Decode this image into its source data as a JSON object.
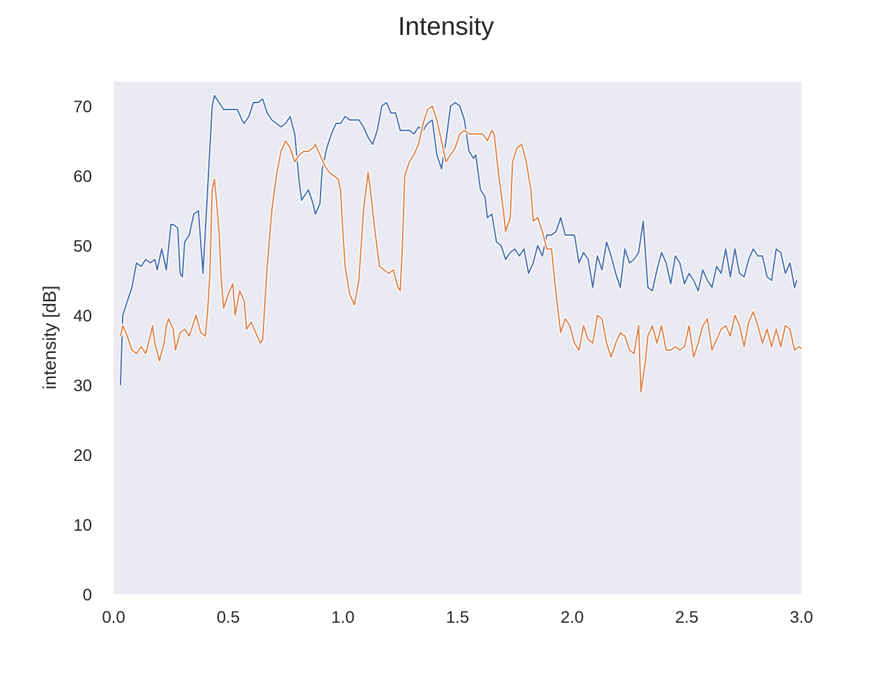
{
  "chart_data": {
    "type": "line",
    "title": "Intensity",
    "xlabel": "",
    "ylabel": "intensity [dB]",
    "xlim": [
      0.0,
      3.0
    ],
    "ylim": [
      0,
      73.5
    ],
    "x_ticks": [
      "0.0",
      "0.5",
      "1.0",
      "1.5",
      "2.0",
      "2.5",
      "3.0"
    ],
    "y_ticks": [
      "0",
      "10",
      "20",
      "30",
      "40",
      "50",
      "60",
      "70"
    ],
    "grid": false,
    "background": "#eaeaf2",
    "series": [
      {
        "color": "#4c72b0",
        "points": [
          [
            0.03,
            30
          ],
          [
            0.04,
            40
          ],
          [
            0.06,
            42
          ],
          [
            0.08,
            44
          ],
          [
            0.1,
            47.5
          ],
          [
            0.12,
            47
          ],
          [
            0.14,
            48
          ],
          [
            0.16,
            47.5
          ],
          [
            0.18,
            48
          ],
          [
            0.19,
            46.5
          ],
          [
            0.21,
            49.5
          ],
          [
            0.23,
            46.5
          ],
          [
            0.25,
            53
          ],
          [
            0.26,
            53
          ],
          [
            0.28,
            52.5
          ],
          [
            0.29,
            46
          ],
          [
            0.3,
            45.5
          ],
          [
            0.31,
            50.5
          ],
          [
            0.33,
            51.5
          ],
          [
            0.35,
            54.5
          ],
          [
            0.37,
            55
          ],
          [
            0.39,
            46
          ],
          [
            0.41,
            58
          ],
          [
            0.43,
            70
          ],
          [
            0.44,
            71.5
          ],
          [
            0.46,
            70.5
          ],
          [
            0.48,
            69.5
          ],
          [
            0.5,
            69.5
          ],
          [
            0.52,
            69.5
          ],
          [
            0.54,
            69.5
          ],
          [
            0.56,
            68
          ],
          [
            0.57,
            67.5
          ],
          [
            0.59,
            68.5
          ],
          [
            0.61,
            70.5
          ],
          [
            0.63,
            70.5
          ],
          [
            0.65,
            71
          ],
          [
            0.67,
            69
          ],
          [
            0.69,
            68
          ],
          [
            0.71,
            67.5
          ],
          [
            0.73,
            67
          ],
          [
            0.75,
            67.5
          ],
          [
            0.77,
            68.5
          ],
          [
            0.79,
            66
          ],
          [
            0.81,
            59
          ],
          [
            0.82,
            56.5
          ],
          [
            0.84,
            57.5
          ],
          [
            0.85,
            58
          ],
          [
            0.87,
            56
          ],
          [
            0.88,
            54.5
          ],
          [
            0.9,
            56
          ],
          [
            0.91,
            61
          ],
          [
            0.93,
            64
          ],
          [
            0.95,
            66
          ],
          [
            0.97,
            67.5
          ],
          [
            0.99,
            67.5
          ],
          [
            1.01,
            68.5
          ],
          [
            1.03,
            68
          ],
          [
            1.05,
            68
          ],
          [
            1.07,
            68
          ],
          [
            1.09,
            67
          ],
          [
            1.11,
            65.5
          ],
          [
            1.13,
            64.5
          ],
          [
            1.15,
            66.5
          ],
          [
            1.17,
            70
          ],
          [
            1.19,
            70.5
          ],
          [
            1.21,
            69
          ],
          [
            1.23,
            69
          ],
          [
            1.25,
            66.5
          ],
          [
            1.27,
            66.5
          ],
          [
            1.29,
            66.5
          ],
          [
            1.31,
            66
          ],
          [
            1.33,
            67
          ],
          [
            1.35,
            66.5
          ],
          [
            1.37,
            67.5
          ],
          [
            1.39,
            68
          ],
          [
            1.41,
            63
          ],
          [
            1.43,
            61
          ],
          [
            1.45,
            65
          ],
          [
            1.47,
            70
          ],
          [
            1.49,
            70.5
          ],
          [
            1.51,
            70
          ],
          [
            1.53,
            68
          ],
          [
            1.55,
            63.5
          ],
          [
            1.57,
            62.5
          ],
          [
            1.58,
            63
          ],
          [
            1.6,
            58
          ],
          [
            1.62,
            57
          ],
          [
            1.63,
            54
          ],
          [
            1.65,
            54.5
          ],
          [
            1.67,
            50.5
          ],
          [
            1.69,
            50
          ],
          [
            1.71,
            48
          ],
          [
            1.73,
            49
          ],
          [
            1.75,
            49.5
          ],
          [
            1.77,
            48.5
          ],
          [
            1.79,
            49.5
          ],
          [
            1.81,
            46
          ],
          [
            1.83,
            47.5
          ],
          [
            1.85,
            50
          ],
          [
            1.87,
            48.5
          ],
          [
            1.89,
            51.5
          ],
          [
            1.91,
            51.5
          ],
          [
            1.93,
            52
          ],
          [
            1.95,
            54
          ],
          [
            1.97,
            51.5
          ],
          [
            1.99,
            51.5
          ],
          [
            2.01,
            51.5
          ],
          [
            2.03,
            47.5
          ],
          [
            2.05,
            49
          ],
          [
            2.07,
            48
          ],
          [
            2.09,
            44
          ],
          [
            2.11,
            48.5
          ],
          [
            2.13,
            46.5
          ],
          [
            2.15,
            50.5
          ],
          [
            2.17,
            48.5
          ],
          [
            2.19,
            46
          ],
          [
            2.21,
            44
          ],
          [
            2.23,
            49.5
          ],
          [
            2.25,
            47.5
          ],
          [
            2.27,
            48
          ],
          [
            2.29,
            49
          ],
          [
            2.31,
            53.5
          ],
          [
            2.33,
            44
          ],
          [
            2.35,
            43.5
          ],
          [
            2.37,
            46.5
          ],
          [
            2.39,
            49
          ],
          [
            2.41,
            47.5
          ],
          [
            2.43,
            44.5
          ],
          [
            2.45,
            48.5
          ],
          [
            2.47,
            47.5
          ],
          [
            2.49,
            44.5
          ],
          [
            2.51,
            46
          ],
          [
            2.53,
            45
          ],
          [
            2.55,
            43.5
          ],
          [
            2.57,
            46.5
          ],
          [
            2.59,
            45
          ],
          [
            2.61,
            44
          ],
          [
            2.63,
            47
          ],
          [
            2.65,
            46
          ],
          [
            2.67,
            49.5
          ],
          [
            2.69,
            45.5
          ],
          [
            2.71,
            49.5
          ],
          [
            2.73,
            46
          ],
          [
            2.75,
            45.5
          ],
          [
            2.77,
            48
          ],
          [
            2.79,
            49.5
          ],
          [
            2.81,
            48.5
          ],
          [
            2.83,
            48.5
          ],
          [
            2.85,
            45.5
          ],
          [
            2.87,
            45
          ],
          [
            2.89,
            49.5
          ],
          [
            2.91,
            49
          ],
          [
            2.93,
            46
          ],
          [
            2.95,
            47.5
          ],
          [
            2.97,
            44
          ],
          [
            2.98,
            45
          ]
        ]
      },
      {
        "color": "#dd8452",
        "points": [
          [
            0.03,
            37
          ],
          [
            0.04,
            38.5
          ],
          [
            0.06,
            37
          ],
          [
            0.08,
            35
          ],
          [
            0.1,
            34.5
          ],
          [
            0.12,
            35.5
          ],
          [
            0.14,
            34.5
          ],
          [
            0.16,
            37
          ],
          [
            0.17,
            38.5
          ],
          [
            0.18,
            36
          ],
          [
            0.2,
            33.5
          ],
          [
            0.22,
            36
          ],
          [
            0.23,
            38.5
          ],
          [
            0.24,
            39.5
          ],
          [
            0.26,
            38
          ],
          [
            0.27,
            35
          ],
          [
            0.29,
            37.5
          ],
          [
            0.31,
            38
          ],
          [
            0.33,
            37
          ],
          [
            0.35,
            39
          ],
          [
            0.36,
            40
          ],
          [
            0.38,
            37.5
          ],
          [
            0.4,
            37
          ],
          [
            0.41,
            40.5
          ],
          [
            0.42,
            46
          ],
          [
            0.43,
            58
          ],
          [
            0.44,
            59.5
          ],
          [
            0.45,
            56
          ],
          [
            0.46,
            52
          ],
          [
            0.47,
            45
          ],
          [
            0.48,
            41
          ],
          [
            0.5,
            43
          ],
          [
            0.52,
            44.5
          ],
          [
            0.53,
            40
          ],
          [
            0.55,
            43.5
          ],
          [
            0.57,
            42
          ],
          [
            0.58,
            38
          ],
          [
            0.6,
            39
          ],
          [
            0.62,
            37.5
          ],
          [
            0.64,
            36
          ],
          [
            0.65,
            36.5
          ],
          [
            0.67,
            47
          ],
          [
            0.69,
            55
          ],
          [
            0.71,
            60
          ],
          [
            0.73,
            63.5
          ],
          [
            0.75,
            65
          ],
          [
            0.77,
            64
          ],
          [
            0.79,
            62
          ],
          [
            0.81,
            63
          ],
          [
            0.83,
            63.5
          ],
          [
            0.85,
            63.5
          ],
          [
            0.87,
            64
          ],
          [
            0.88,
            64.5
          ],
          [
            0.9,
            63
          ],
          [
            0.92,
            61.5
          ],
          [
            0.94,
            60.5
          ],
          [
            0.96,
            60
          ],
          [
            0.98,
            59.5
          ],
          [
            0.99,
            58
          ],
          [
            1.0,
            52
          ],
          [
            1.01,
            47
          ],
          [
            1.03,
            43
          ],
          [
            1.05,
            41.5
          ],
          [
            1.07,
            45
          ],
          [
            1.09,
            55
          ],
          [
            1.11,
            60.5
          ],
          [
            1.12,
            58
          ],
          [
            1.14,
            52
          ],
          [
            1.16,
            47
          ],
          [
            1.18,
            46.5
          ],
          [
            1.2,
            46
          ],
          [
            1.22,
            46.5
          ],
          [
            1.24,
            44
          ],
          [
            1.25,
            43.5
          ],
          [
            1.26,
            50
          ],
          [
            1.27,
            60
          ],
          [
            1.29,
            62
          ],
          [
            1.31,
            63
          ],
          [
            1.33,
            64.5
          ],
          [
            1.35,
            67.5
          ],
          [
            1.37,
            69.5
          ],
          [
            1.39,
            70
          ],
          [
            1.41,
            68
          ],
          [
            1.43,
            65
          ],
          [
            1.45,
            62
          ],
          [
            1.47,
            63
          ],
          [
            1.49,
            64
          ],
          [
            1.51,
            66
          ],
          [
            1.53,
            66.5
          ],
          [
            1.55,
            66
          ],
          [
            1.57,
            66
          ],
          [
            1.59,
            66
          ],
          [
            1.61,
            66
          ],
          [
            1.63,
            65
          ],
          [
            1.65,
            66.5
          ],
          [
            1.66,
            66
          ],
          [
            1.68,
            60
          ],
          [
            1.7,
            55
          ],
          [
            1.71,
            52
          ],
          [
            1.73,
            54
          ],
          [
            1.74,
            62
          ],
          [
            1.76,
            64
          ],
          [
            1.78,
            64.5
          ],
          [
            1.8,
            62
          ],
          [
            1.82,
            58
          ],
          [
            1.83,
            53.5
          ],
          [
            1.85,
            54
          ],
          [
            1.87,
            52
          ],
          [
            1.89,
            49.5
          ],
          [
            1.91,
            49.5
          ],
          [
            1.93,
            43
          ],
          [
            1.95,
            37.5
          ],
          [
            1.97,
            39.5
          ],
          [
            1.99,
            38.5
          ],
          [
            2.01,
            36
          ],
          [
            2.03,
            35
          ],
          [
            2.05,
            38.5
          ],
          [
            2.07,
            36.5
          ],
          [
            2.09,
            36
          ],
          [
            2.11,
            40
          ],
          [
            2.13,
            39.5
          ],
          [
            2.15,
            36
          ],
          [
            2.17,
            34
          ],
          [
            2.19,
            36
          ],
          [
            2.21,
            37.5
          ],
          [
            2.23,
            37
          ],
          [
            2.25,
            35
          ],
          [
            2.27,
            34.5
          ],
          [
            2.29,
            38.5
          ],
          [
            2.3,
            29
          ],
          [
            2.32,
            33.5
          ],
          [
            2.33,
            37
          ],
          [
            2.35,
            38.5
          ],
          [
            2.37,
            36
          ],
          [
            2.39,
            38.5
          ],
          [
            2.41,
            35
          ],
          [
            2.43,
            35
          ],
          [
            2.45,
            35.5
          ],
          [
            2.47,
            35
          ],
          [
            2.49,
            35.5
          ],
          [
            2.51,
            38.5
          ],
          [
            2.53,
            34
          ],
          [
            2.55,
            36
          ],
          [
            2.57,
            38.5
          ],
          [
            2.59,
            39.5
          ],
          [
            2.61,
            35
          ],
          [
            2.63,
            36.5
          ],
          [
            2.65,
            38
          ],
          [
            2.67,
            38.5
          ],
          [
            2.69,
            37
          ],
          [
            2.71,
            40
          ],
          [
            2.73,
            38.5
          ],
          [
            2.75,
            35.5
          ],
          [
            2.77,
            39
          ],
          [
            2.79,
            40.5
          ],
          [
            2.81,
            38.5
          ],
          [
            2.83,
            36
          ],
          [
            2.85,
            38
          ],
          [
            2.87,
            35.5
          ],
          [
            2.89,
            38
          ],
          [
            2.91,
            35.5
          ],
          [
            2.93,
            38.5
          ],
          [
            2.95,
            38
          ],
          [
            2.97,
            35
          ],
          [
            2.99,
            35.5
          ],
          [
            3.01,
            35
          ],
          [
            3.03,
            35
          ],
          [
            3.05,
            34.5
          ],
          [
            3.07,
            36.5
          ],
          [
            3.09,
            38.5
          ],
          [
            3.11,
            37.5
          ]
        ]
      }
    ]
  }
}
